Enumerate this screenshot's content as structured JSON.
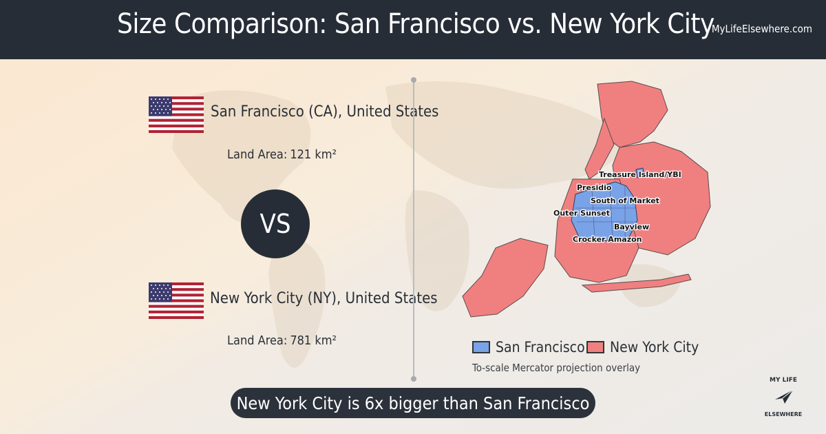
{
  "header": {
    "title": "Size Comparison: San Francisco vs. New York City",
    "site": "MyLifeElsewhere.com"
  },
  "city_a": {
    "name": "San Francisco (CA), United States",
    "area_label": "Land Area:",
    "area_value": "121 km²",
    "flag_icon": "us-flag-icon"
  },
  "city_b": {
    "name": "New York City (NY), United States",
    "area_label": "Land Area:",
    "area_value": "781 km²",
    "flag_icon": "us-flag-icon"
  },
  "vs_label": "VS",
  "map": {
    "overlay_labels": [
      "Treasure Island/YBI",
      "Presidio",
      "South of Market",
      "Outer Sunset",
      "Bayview",
      "Crocker Amazon"
    ],
    "legend": [
      {
        "label": "San Francisco",
        "color": "#7aa2e6"
      },
      {
        "label": "New York City",
        "color": "#f08080"
      }
    ],
    "note": "To-scale Mercator projection overlay"
  },
  "summary": "New York City is 6x bigger than San Francisco",
  "logo_text": {
    "line1": "MY LIFE",
    "line2": "ELSEWHERE"
  },
  "colors": {
    "header_bg": "#262d37",
    "nyc_fill": "#f08080",
    "sf_fill": "#7aa2e6"
  }
}
